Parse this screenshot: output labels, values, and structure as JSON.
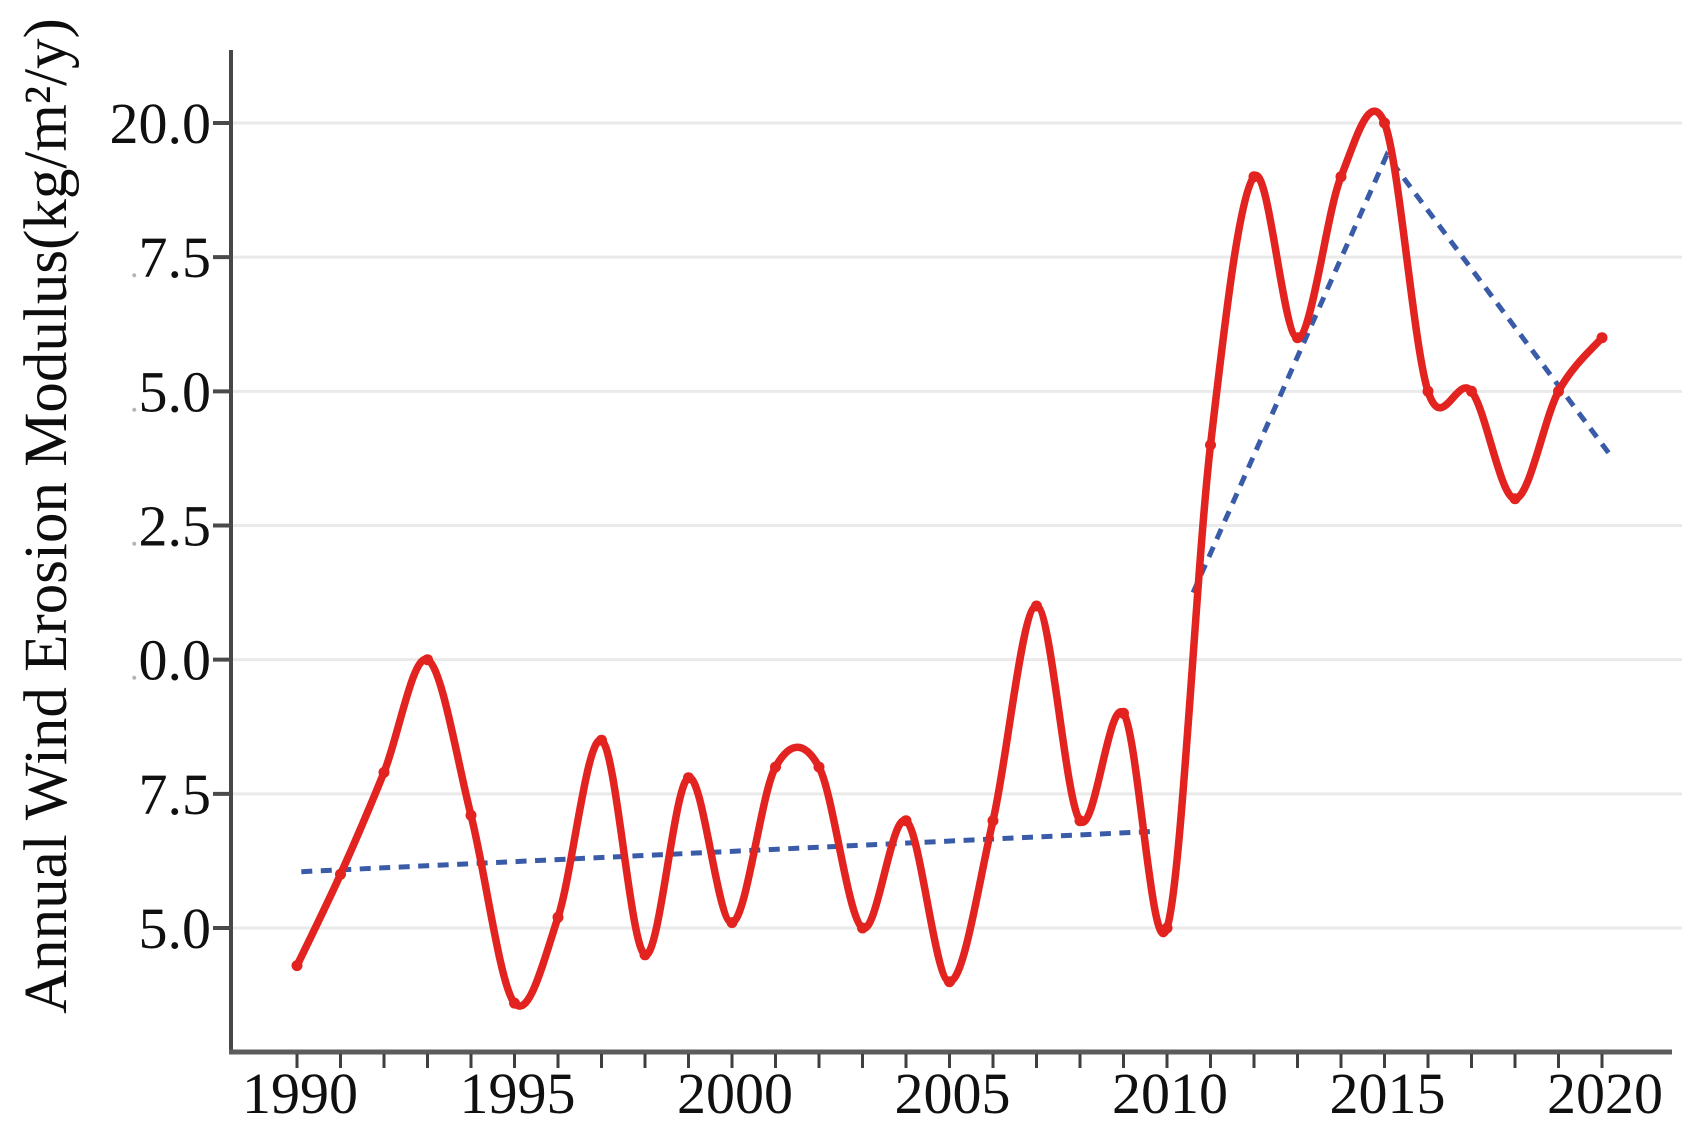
{
  "chart_data": {
    "type": "line",
    "title": "",
    "ylabel": "Annual Wind Erosion Modulus(kg/m²/y)",
    "xlabel": "",
    "grid": "horizontal",
    "legend": "none",
    "xlim": [
      1988.5,
      2021.5
    ],
    "ylim": [
      2.7,
      21.4
    ],
    "x": [
      1990,
      1991,
      1992,
      1993,
      1994,
      1995,
      1996,
      1997,
      1998,
      1999,
      2000,
      2001,
      2002,
      2003,
      2004,
      2005,
      2006,
      2007,
      2008,
      2009,
      2010,
      2011,
      2012,
      2013,
      2014,
      2015,
      2016,
      2017,
      2018,
      2019,
      2020
    ],
    "series": [
      {
        "name": "annual-wind-erosion-modulus",
        "style": "smooth-line-with-markers",
        "color": "#e2231f",
        "marker": "circle",
        "values": [
          4.3,
          6.0,
          7.9,
          10.0,
          7.1,
          3.6,
          5.2,
          8.5,
          4.5,
          7.8,
          5.1,
          8.0,
          8.0,
          5.0,
          7.0,
          4.0,
          7.0,
          11.0,
          7.0,
          9.0,
          5.0,
          14.0,
          19.0,
          16.0,
          19.0,
          20.0,
          15.0,
          15.0,
          13.0,
          15.0,
          16.0
        ]
      },
      {
        "name": "trend-1990-2010",
        "style": "dashed",
        "color": "#3a5ca8",
        "points": [
          [
            1990.1,
            6.05
          ],
          [
            2009.7,
            6.8
          ]
        ]
      },
      {
        "name": "trend-2010-2020",
        "style": "dashed",
        "color": "#3a5ca8",
        "points": [
          [
            2010.6,
            11.25
          ],
          [
            2015.05,
            19.4
          ],
          [
            2020.2,
            13.8
          ]
        ]
      }
    ],
    "y_ticks": [
      {
        "value": 20.0,
        "faint_prefix": "",
        "label": "20.0"
      },
      {
        "value": 17.5,
        "faint_prefix": ".",
        "label": "7.5"
      },
      {
        "value": 15.0,
        "faint_prefix": ".",
        "label": "5.0"
      },
      {
        "value": 12.5,
        "faint_prefix": ".",
        "label": "2.5"
      },
      {
        "value": 10.0,
        "faint_prefix": ".",
        "label": "0.0"
      },
      {
        "value": 7.5,
        "faint_prefix": "",
        "label": "7.5"
      },
      {
        "value": 5.0,
        "faint_prefix": "",
        "label": "5.0"
      }
    ],
    "x_ticks_labeled": [
      "1990",
      "1995",
      "2000",
      "2005",
      "2010",
      "2015",
      "2020"
    ],
    "x_minor_tick_years": [
      1990,
      2020
    ],
    "x_minor_tick_step": 1
  },
  "colors": {
    "series_red": "#e2231f",
    "trend_blue": "#3a5ca8",
    "gridline": "#eaeaea",
    "axis": "#5c5c5c",
    "tick": "#4a4a4a",
    "text": "#101010",
    "faint_prefix": "#b3b3b3",
    "background": "#ffffff"
  }
}
